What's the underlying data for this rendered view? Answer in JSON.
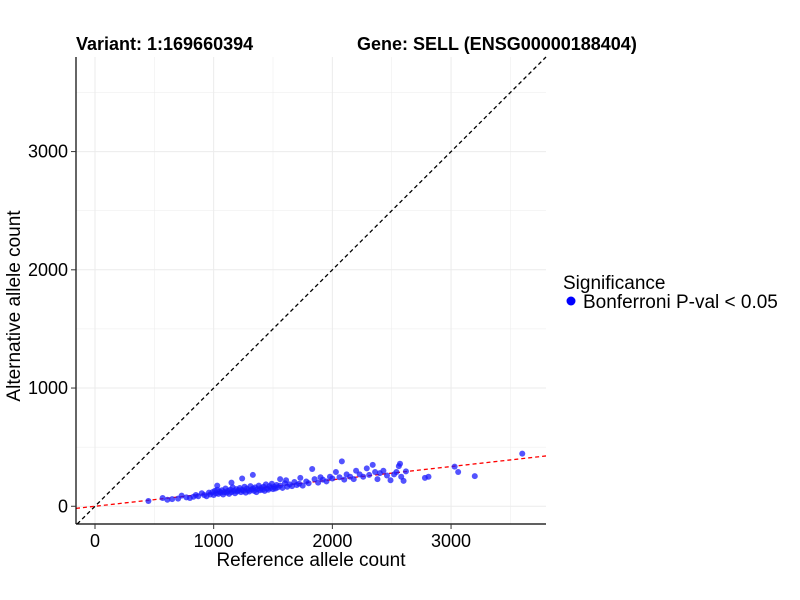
{
  "header": {
    "variant": "Variant: 1:169660394",
    "gene": "Gene: SELL (ENSG00000188404)"
  },
  "legend": {
    "title": "Significance",
    "items": [
      {
        "label": "Bonferroni P-val < 0.05",
        "color": "#0000ff"
      }
    ]
  },
  "colors": {
    "points": "#1a1aff",
    "identity_line": "#000000",
    "fit_line": "#ff0000",
    "grid": "#ebebeb"
  },
  "chart_data": {
    "type": "scatter",
    "title": "Variant: 1:169660394",
    "subtitle": "Gene: SELL (ENSG00000188404)",
    "xlabel": "Reference allele count",
    "ylabel": "Alternative allele count",
    "xlim": [
      -160,
      3800
    ],
    "ylim": [
      -150,
      3800
    ],
    "xticks": [
      0,
      1000,
      2000,
      3000
    ],
    "yticks": [
      0,
      1000,
      2000,
      3000
    ],
    "grid": true,
    "legend_position": "right",
    "reference_lines": [
      {
        "name": "identity",
        "slope": 1,
        "intercept": 0,
        "style": "dashed",
        "color": "#000000"
      },
      {
        "name": "fit",
        "slope": 0.112,
        "intercept": 0,
        "style": "dashed",
        "color": "#ff0000"
      }
    ],
    "series": [
      {
        "name": "Bonferroni P-val < 0.05",
        "color": "#0000ff",
        "points": [
          [
            450,
            45
          ],
          [
            570,
            70
          ],
          [
            610,
            55
          ],
          [
            650,
            60
          ],
          [
            700,
            65
          ],
          [
            730,
            90
          ],
          [
            770,
            75
          ],
          [
            800,
            70
          ],
          [
            830,
            80
          ],
          [
            850,
            95
          ],
          [
            870,
            85
          ],
          [
            900,
            110
          ],
          [
            920,
            95
          ],
          [
            940,
            85
          ],
          [
            960,
            115
          ],
          [
            970,
            100
          ],
          [
            990,
            120
          ],
          [
            1000,
            95
          ],
          [
            1010,
            130
          ],
          [
            1020,
            110
          ],
          [
            1030,
            140
          ],
          [
            1040,
            105
          ],
          [
            1050,
            125
          ],
          [
            1060,
            115
          ],
          [
            1070,
            135
          ],
          [
            1080,
            100
          ],
          [
            1090,
            120
          ],
          [
            1100,
            150
          ],
          [
            1110,
            115
          ],
          [
            1120,
            130
          ],
          [
            1130,
            105
          ],
          [
            1140,
            140
          ],
          [
            1150,
            120
          ],
          [
            1160,
            160
          ],
          [
            1170,
            130
          ],
          [
            1180,
            110
          ],
          [
            1190,
            145
          ],
          [
            1200,
            125
          ],
          [
            1210,
            135
          ],
          [
            1220,
            155
          ],
          [
            1230,
            120
          ],
          [
            1240,
            140
          ],
          [
            1250,
            130
          ],
          [
            1260,
            165
          ],
          [
            1270,
            115
          ],
          [
            1280,
            150
          ],
          [
            1290,
            135
          ],
          [
            1300,
            125
          ],
          [
            1310,
            170
          ],
          [
            1320,
            140
          ],
          [
            1330,
            150
          ],
          [
            1340,
            130
          ],
          [
            1350,
            160
          ],
          [
            1360,
            120
          ],
          [
            1370,
            145
          ],
          [
            1380,
            175
          ],
          [
            1390,
            135
          ],
          [
            1400,
            155
          ],
          [
            1410,
            140
          ],
          [
            1420,
            165
          ],
          [
            1430,
            130
          ],
          [
            1440,
            185
          ],
          [
            1450,
            150
          ],
          [
            1460,
            140
          ],
          [
            1470,
            170
          ],
          [
            1480,
            155
          ],
          [
            1490,
            190
          ],
          [
            1500,
            145
          ],
          [
            1510,
            165
          ],
          [
            1520,
            150
          ],
          [
            1530,
            180
          ],
          [
            1540,
            160
          ],
          [
            1560,
            175
          ],
          [
            1580,
            155
          ],
          [
            1600,
            195
          ],
          [
            1620,
            165
          ],
          [
            1640,
            185
          ],
          [
            1660,
            170
          ],
          [
            1680,
            205
          ],
          [
            1700,
            180
          ],
          [
            1720,
            190
          ],
          [
            1750,
            175
          ],
          [
            1780,
            210
          ],
          [
            1800,
            195
          ],
          [
            1830,
            315
          ],
          [
            1850,
            230
          ],
          [
            1880,
            200
          ],
          [
            1900,
            245
          ],
          [
            1920,
            225
          ],
          [
            1950,
            210
          ],
          [
            1980,
            250
          ],
          [
            2000,
            235
          ],
          [
            2030,
            290
          ],
          [
            2060,
            245
          ],
          [
            2080,
            380
          ],
          [
            2100,
            225
          ],
          [
            2120,
            270
          ],
          [
            2150,
            250
          ],
          [
            2180,
            230
          ],
          [
            2200,
            300
          ],
          [
            2230,
            270
          ],
          [
            2260,
            250
          ],
          [
            2290,
            320
          ],
          [
            2310,
            265
          ],
          [
            2340,
            350
          ],
          [
            2360,
            290
          ],
          [
            2380,
            230
          ],
          [
            2400,
            280
          ],
          [
            2430,
            300
          ],
          [
            2460,
            260
          ],
          [
            2490,
            220
          ],
          [
            2520,
            270
          ],
          [
            2540,
            290
          ],
          [
            2560,
            340
          ],
          [
            2570,
            360
          ],
          [
            2580,
            250
          ],
          [
            2600,
            215
          ],
          [
            2620,
            295
          ],
          [
            2780,
            240
          ],
          [
            2810,
            250
          ],
          [
            3030,
            335
          ],
          [
            3060,
            290
          ],
          [
            3200,
            255
          ],
          [
            3600,
            445
          ],
          [
            1030,
            175
          ],
          [
            1150,
            200
          ],
          [
            1240,
            235
          ],
          [
            1330,
            265
          ],
          [
            1560,
            230
          ],
          [
            1610,
            220
          ],
          [
            1730,
            240
          ]
        ]
      }
    ]
  }
}
